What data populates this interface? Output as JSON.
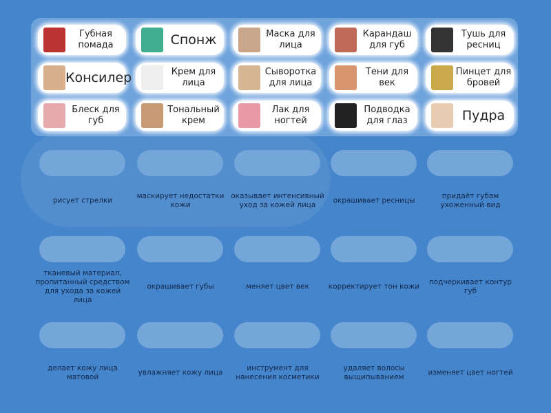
{
  "cards": [
    {
      "label": "Губная помада",
      "icon": "lipstick-icon",
      "color": "#b33"
    },
    {
      "label": "Спонж",
      "icon": "sponge-icon",
      "color": "#3fae8e",
      "big": true
    },
    {
      "label": "Маска для лица",
      "icon": "face-mask-icon",
      "color": "#c9a58a"
    },
    {
      "label": "Карандаш для губ",
      "icon": "lip-pencil-icon",
      "color": "#c06a5a"
    },
    {
      "label": "Тушь для ресниц",
      "icon": "mascara-icon",
      "color": "#333"
    },
    {
      "label": "Консилер",
      "icon": "concealer-icon",
      "color": "#d9b08c",
      "big": true
    },
    {
      "label": "Крем для лица",
      "icon": "face-cream-icon",
      "color": "#eee"
    },
    {
      "label": "Сыворотка для лица",
      "icon": "serum-icon",
      "color": "#d6b594"
    },
    {
      "label": "Тени для век",
      "icon": "eyeshadow-icon",
      "color": "#d9956e"
    },
    {
      "label": "Пинцет для бровей",
      "icon": "tweezers-icon",
      "color": "#c9a94a"
    },
    {
      "label": "Блеск для губ",
      "icon": "lip-gloss-icon",
      "color": "#e6a9ad"
    },
    {
      "label": "Тональный крем",
      "icon": "foundation-icon",
      "color": "#c79a74"
    },
    {
      "label": "Лак для ногтей",
      "icon": "nail-polish-icon",
      "color": "#e99aa6"
    },
    {
      "label": "Подводка для глаз",
      "icon": "eyeliner-icon",
      "color": "#222"
    },
    {
      "label": "Пудра",
      "icon": "powder-icon",
      "color": "#e8cdb3",
      "big": true
    }
  ],
  "clues": [
    "рисует стрелки",
    "маскирует недостатки кожи",
    "оказывает интенсивный уход за кожей лица",
    "окрашивает ресницы",
    "придаёт губам ухоженный вид",
    "тканевый материал, пропитанный средством для ухода за кожей лица",
    "окрашивает губы",
    "меняет цвет век",
    "корректирует тон кожи",
    "подчеркивает контур губ",
    "делает кожу лица матовой",
    "увлажняет кожу лица",
    "инструмент для нанесения косметики",
    "удаляет волосы выщипыванием",
    "изменяет цвет ногтей"
  ]
}
